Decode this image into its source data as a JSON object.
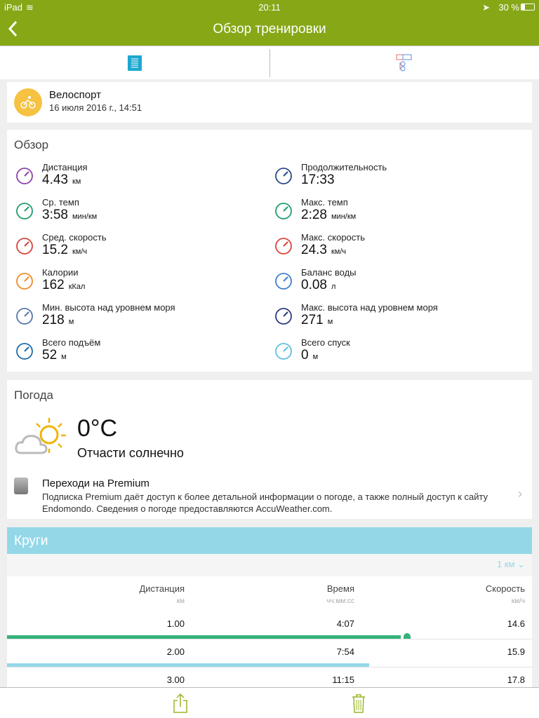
{
  "status": {
    "device": "iPad",
    "time": "20:11",
    "battery": "30 %"
  },
  "nav": {
    "title": "Обзор тренировки",
    "back_icon": "chevron-left-icon"
  },
  "colors": {
    "brand": "#86a817",
    "laps_header": "#94d8e8",
    "lap_best": "#34b27a",
    "lap_bar": "#94d8e8"
  },
  "workout": {
    "sport": "Велоспорт",
    "date": "16 июля 2016 г., 14:51"
  },
  "overview": {
    "title": "Обзор",
    "metrics": [
      {
        "label": "Дистанция",
        "value": "4.43",
        "unit": "км",
        "icon": "location-pins-icon",
        "color": "#8e44ad"
      },
      {
        "label": "Продолжительность",
        "value": "17:33",
        "unit": "",
        "icon": "stopwatch-icon",
        "color": "#2c4a8c"
      },
      {
        "label": "Ср. темп",
        "value": "3:58",
        "unit": "мин/км",
        "icon": "speedometer-icon",
        "color": "#1e9e6a"
      },
      {
        "label": "Макс. темп",
        "value": "2:28",
        "unit": "мин/км",
        "icon": "speedometer-icon",
        "color": "#1e9e6a"
      },
      {
        "label": "Сред. скорость",
        "value": "15.2",
        "unit": "км/ч",
        "icon": "speedometer-icon",
        "color": "#d9433a"
      },
      {
        "label": "Макс. скорость",
        "value": "24.3",
        "unit": "км/ч",
        "icon": "speedometer-icon",
        "color": "#d9433a"
      },
      {
        "label": "Калории",
        "value": "162",
        "unit": "кКал",
        "icon": "flame-icon",
        "color": "#f08a24"
      },
      {
        "label": "Баланс воды",
        "value": "0.08",
        "unit": "л",
        "icon": "water-drops-icon",
        "color": "#3b7fd0"
      },
      {
        "label": "Мин. высота над уровнем моря",
        "value": "218",
        "unit": "м",
        "icon": "mountain-icon",
        "color": "#5577aa"
      },
      {
        "label": "Макс. высота над уровнем моря",
        "value": "271",
        "unit": "м",
        "icon": "mountain-icon",
        "color": "#2c3a7a"
      },
      {
        "label": "Всего подъём",
        "value": "52",
        "unit": "м",
        "icon": "ascent-arrow-icon",
        "color": "#1e6aa8"
      },
      {
        "label": "Всего спуск",
        "value": "0",
        "unit": "м",
        "icon": "descent-arrow-icon",
        "color": "#5bc0de"
      }
    ]
  },
  "weather": {
    "title": "Погода",
    "temp": "0°C",
    "condition": "Отчасти солнечно",
    "premium_title": "Переходи на Premium",
    "premium_desc": "Подписка Premium даёт доступ к более детальной информации о погоде, а также полный доступ к сайту Endomondo. Сведения о погоде предоставляются AccuWeather.com."
  },
  "laps": {
    "title": "Круги",
    "interval": "1 км",
    "columns": [
      {
        "label": "Дистанция",
        "unit": "км"
      },
      {
        "label": "Время",
        "unit": "чч:мм:сс"
      },
      {
        "label": "Скорость",
        "unit": "км/ч"
      }
    ],
    "rows": [
      {
        "dist": "1.00",
        "time": "4:07",
        "speed": "14.6",
        "bar_fraction": 0.75,
        "best": true
      },
      {
        "dist": "2.00",
        "time": "7:54",
        "speed": "15.9",
        "bar_fraction": 0.69,
        "best": false
      },
      {
        "dist": "3.00",
        "time": "11:15",
        "speed": "17.8"
      }
    ]
  }
}
